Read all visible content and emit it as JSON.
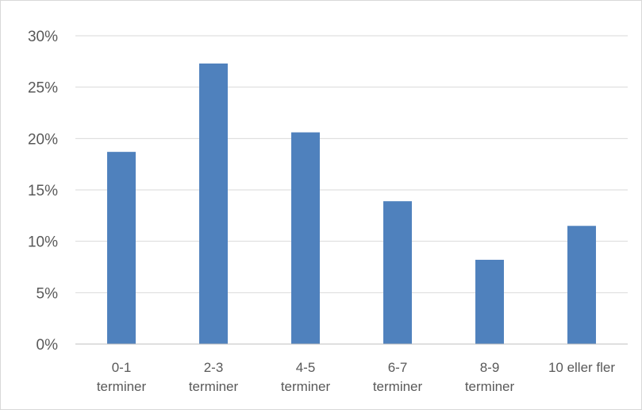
{
  "chart_data": {
    "type": "bar",
    "title": "",
    "xlabel": "",
    "ylabel": "",
    "categories": [
      [
        "0-1",
        "terminer"
      ],
      [
        "2-3",
        "terminer"
      ],
      [
        "4-5",
        "terminer"
      ],
      [
        "6-7",
        "terminer"
      ],
      [
        "8-9",
        "terminer"
      ],
      [
        "10 eller fler"
      ]
    ],
    "values": [
      18.7,
      27.3,
      20.6,
      13.9,
      8.2,
      11.5
    ],
    "ylim": [
      0,
      30
    ],
    "yticks": [
      0,
      5,
      10,
      15,
      20,
      25,
      30
    ],
    "ytick_labels": [
      "0%",
      "5%",
      "10%",
      "15%",
      "20%",
      "25%",
      "30%"
    ],
    "grid": true,
    "legend": "none",
    "colors": {
      "bar": "#4f81bd",
      "grid": "#d9d9d9",
      "axis": "#bfbfbf",
      "text": "#595959"
    }
  }
}
